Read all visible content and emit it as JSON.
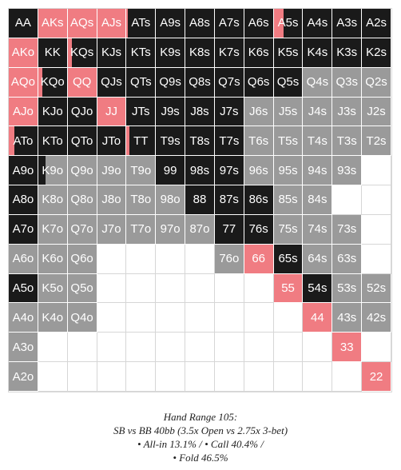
{
  "chart_data": {
    "type": "heatmap",
    "colors": {
      "allin": "#f07c82",
      "call": "#1a1a1a",
      "fold": "#9a9a9a",
      "empty": "#ffffff"
    },
    "rows": [
      [
        {
          "l": "AA",
          "a": 0,
          "c": 1,
          "f": 0
        },
        {
          "l": "AKs",
          "a": 1,
          "c": 0,
          "f": 0
        },
        {
          "l": "AQs",
          "a": 1,
          "c": 0,
          "f": 0
        },
        {
          "l": "AJs",
          "a": 1,
          "c": 0,
          "f": 0
        },
        {
          "l": "ATs",
          "a": 0.05,
          "c": 0.95,
          "f": 0
        },
        {
          "l": "A9s",
          "a": 0,
          "c": 1,
          "f": 0
        },
        {
          "l": "A8s",
          "a": 0,
          "c": 1,
          "f": 0
        },
        {
          "l": "A7s",
          "a": 0,
          "c": 1,
          "f": 0
        },
        {
          "l": "A6s",
          "a": 0,
          "c": 1,
          "f": 0
        },
        {
          "l": "A5s",
          "a": 0.35,
          "c": 0.65,
          "f": 0
        },
        {
          "l": "A4s",
          "a": 0,
          "c": 1,
          "f": 0
        },
        {
          "l": "A3s",
          "a": 0,
          "c": 1,
          "f": 0
        },
        {
          "l": "A2s",
          "a": 0,
          "c": 1,
          "f": 0
        }
      ],
      [
        {
          "l": "AKo",
          "a": 1,
          "c": 0,
          "f": 0
        },
        {
          "l": "KK",
          "a": 0,
          "c": 1,
          "f": 0
        },
        {
          "l": "KQs",
          "a": 0.15,
          "c": 0.85,
          "f": 0
        },
        {
          "l": "KJs",
          "a": 0,
          "c": 1,
          "f": 0
        },
        {
          "l": "KTs",
          "a": 0,
          "c": 1,
          "f": 0
        },
        {
          "l": "K9s",
          "a": 0,
          "c": 1,
          "f": 0
        },
        {
          "l": "K8s",
          "a": 0,
          "c": 1,
          "f": 0
        },
        {
          "l": "K7s",
          "a": 0,
          "c": 1,
          "f": 0
        },
        {
          "l": "K6s",
          "a": 0,
          "c": 1,
          "f": 0
        },
        {
          "l": "K5s",
          "a": 0,
          "c": 1,
          "f": 0
        },
        {
          "l": "K4s",
          "a": 0,
          "c": 1,
          "f": 0
        },
        {
          "l": "K3s",
          "a": 0,
          "c": 1,
          "f": 0
        },
        {
          "l": "K2s",
          "a": 0,
          "c": 1,
          "f": 0
        }
      ],
      [
        {
          "l": "AQo",
          "a": 1,
          "c": 0,
          "f": 0
        },
        {
          "l": "KQo",
          "a": 0.15,
          "c": 0.85,
          "f": 0
        },
        {
          "l": "QQ",
          "a": 1,
          "c": 0,
          "f": 0
        },
        {
          "l": "QJs",
          "a": 0,
          "c": 1,
          "f": 0
        },
        {
          "l": "QTs",
          "a": 0,
          "c": 1,
          "f": 0
        },
        {
          "l": "Q9s",
          "a": 0,
          "c": 1,
          "f": 0
        },
        {
          "l": "Q8s",
          "a": 0,
          "c": 1,
          "f": 0
        },
        {
          "l": "Q7s",
          "a": 0,
          "c": 1,
          "f": 0
        },
        {
          "l": "Q6s",
          "a": 0,
          "c": 1,
          "f": 0
        },
        {
          "l": "Q5s",
          "a": 0,
          "c": 1,
          "f": 0
        },
        {
          "l": "Q4s",
          "a": 0,
          "c": 0,
          "f": 1
        },
        {
          "l": "Q3s",
          "a": 0,
          "c": 0,
          "f": 1
        },
        {
          "l": "Q2s",
          "a": 0,
          "c": 0,
          "f": 1
        }
      ],
      [
        {
          "l": "AJo",
          "a": 1,
          "c": 0,
          "f": 0
        },
        {
          "l": "KJo",
          "a": 0,
          "c": 1,
          "f": 0
        },
        {
          "l": "QJo",
          "a": 0,
          "c": 1,
          "f": 0
        },
        {
          "l": "JJ",
          "a": 1,
          "c": 0,
          "f": 0
        },
        {
          "l": "JTs",
          "a": 0,
          "c": 1,
          "f": 0
        },
        {
          "l": "J9s",
          "a": 0,
          "c": 1,
          "f": 0
        },
        {
          "l": "J8s",
          "a": 0,
          "c": 1,
          "f": 0
        },
        {
          "l": "J7s",
          "a": 0,
          "c": 1,
          "f": 0
        },
        {
          "l": "J6s",
          "a": 0,
          "c": 0,
          "f": 1
        },
        {
          "l": "J5s",
          "a": 0,
          "c": 0,
          "f": 1
        },
        {
          "l": "J4s",
          "a": 0,
          "c": 0,
          "f": 1
        },
        {
          "l": "J3s",
          "a": 0,
          "c": 0,
          "f": 1
        },
        {
          "l": "J2s",
          "a": 0,
          "c": 0,
          "f": 1
        }
      ],
      [
        {
          "l": "ATo",
          "a": 0.2,
          "c": 0.8,
          "f": 0
        },
        {
          "l": "KTo",
          "a": 0,
          "c": 1,
          "f": 0
        },
        {
          "l": "QTo",
          "a": 0,
          "c": 1,
          "f": 0
        },
        {
          "l": "JTo",
          "a": 0,
          "c": 1,
          "f": 0
        },
        {
          "l": "TT",
          "a": 0.1,
          "c": 0.9,
          "f": 0
        },
        {
          "l": "T9s",
          "a": 0,
          "c": 1,
          "f": 0
        },
        {
          "l": "T8s",
          "a": 0,
          "c": 1,
          "f": 0
        },
        {
          "l": "T7s",
          "a": 0,
          "c": 1,
          "f": 0
        },
        {
          "l": "T6s",
          "a": 0,
          "c": 0,
          "f": 1
        },
        {
          "l": "T5s",
          "a": 0,
          "c": 0,
          "f": 1
        },
        {
          "l": "T4s",
          "a": 0,
          "c": 0,
          "f": 1
        },
        {
          "l": "T3s",
          "a": 0,
          "c": 0,
          "f": 1
        },
        {
          "l": "T2s",
          "a": 0,
          "c": 0,
          "f": 1
        }
      ],
      [
        {
          "l": "A9o",
          "a": 0,
          "c": 1,
          "f": 0
        },
        {
          "l": "K9o",
          "a": 0,
          "c": 0.25,
          "f": 0.75
        },
        {
          "l": "Q9o",
          "a": 0,
          "c": 0,
          "f": 1
        },
        {
          "l": "J9o",
          "a": 0,
          "c": 0,
          "f": 1
        },
        {
          "l": "T9o",
          "a": 0,
          "c": 0,
          "f": 1
        },
        {
          "l": "99",
          "a": 0,
          "c": 1,
          "f": 0
        },
        {
          "l": "98s",
          "a": 0,
          "c": 1,
          "f": 0
        },
        {
          "l": "97s",
          "a": 0,
          "c": 1,
          "f": 0
        },
        {
          "l": "96s",
          "a": 0,
          "c": 0,
          "f": 1
        },
        {
          "l": "95s",
          "a": 0,
          "c": 0,
          "f": 1
        },
        {
          "l": "94s",
          "a": 0,
          "c": 0,
          "f": 1
        },
        {
          "l": "93s",
          "a": 0,
          "c": 0,
          "f": 1
        },
        {
          "l": "",
          "a": 0,
          "c": 0,
          "f": 0
        }
      ],
      [
        {
          "l": "A8o",
          "a": 0,
          "c": 1,
          "f": 0
        },
        {
          "l": "K8o",
          "a": 0,
          "c": 0,
          "f": 1
        },
        {
          "l": "Q8o",
          "a": 0,
          "c": 0,
          "f": 1
        },
        {
          "l": "J8o",
          "a": 0,
          "c": 0,
          "f": 1
        },
        {
          "l": "T8o",
          "a": 0,
          "c": 0,
          "f": 1
        },
        {
          "l": "98o",
          "a": 0,
          "c": 0,
          "f": 1
        },
        {
          "l": "88",
          "a": 0,
          "c": 1,
          "f": 0
        },
        {
          "l": "87s",
          "a": 0,
          "c": 1,
          "f": 0
        },
        {
          "l": "86s",
          "a": 0,
          "c": 1,
          "f": 0
        },
        {
          "l": "85s",
          "a": 0,
          "c": 0,
          "f": 1
        },
        {
          "l": "84s",
          "a": 0,
          "c": 0,
          "f": 1
        },
        {
          "l": "",
          "a": 0,
          "c": 0,
          "f": 0
        },
        {
          "l": "",
          "a": 0,
          "c": 0,
          "f": 0
        }
      ],
      [
        {
          "l": "A7o",
          "a": 0,
          "c": 1,
          "f": 0
        },
        {
          "l": "K7o",
          "a": 0,
          "c": 0,
          "f": 1
        },
        {
          "l": "Q7o",
          "a": 0,
          "c": 0,
          "f": 1
        },
        {
          "l": "J7o",
          "a": 0,
          "c": 0,
          "f": 1
        },
        {
          "l": "T7o",
          "a": 0,
          "c": 0,
          "f": 1
        },
        {
          "l": "97o",
          "a": 0,
          "c": 0,
          "f": 1
        },
        {
          "l": "87o",
          "a": 0,
          "c": 0,
          "f": 1
        },
        {
          "l": "77",
          "a": 0,
          "c": 1,
          "f": 0
        },
        {
          "l": "76s",
          "a": 0,
          "c": 1,
          "f": 0
        },
        {
          "l": "75s",
          "a": 0,
          "c": 0,
          "f": 1
        },
        {
          "l": "74s",
          "a": 0,
          "c": 0,
          "f": 1
        },
        {
          "l": "73s",
          "a": 0,
          "c": 0,
          "f": 1
        },
        {
          "l": "",
          "a": 0,
          "c": 0,
          "f": 0
        }
      ],
      [
        {
          "l": "A6o",
          "a": 0,
          "c": 0,
          "f": 1
        },
        {
          "l": "K6o",
          "a": 0,
          "c": 0,
          "f": 1
        },
        {
          "l": "Q6o",
          "a": 0,
          "c": 0,
          "f": 1
        },
        {
          "l": "",
          "a": 0,
          "c": 0,
          "f": 0
        },
        {
          "l": "",
          "a": 0,
          "c": 0,
          "f": 0
        },
        {
          "l": "",
          "a": 0,
          "c": 0,
          "f": 0
        },
        {
          "l": "",
          "a": 0,
          "c": 0,
          "f": 0
        },
        {
          "l": "76o",
          "a": 0,
          "c": 0,
          "f": 1
        },
        {
          "l": "66",
          "a": 1,
          "c": 0,
          "f": 0
        },
        {
          "l": "65s",
          "a": 0,
          "c": 1,
          "f": 0
        },
        {
          "l": "64s",
          "a": 0,
          "c": 0,
          "f": 1
        },
        {
          "l": "63s",
          "a": 0,
          "c": 0,
          "f": 1
        },
        {
          "l": "",
          "a": 0,
          "c": 0,
          "f": 0
        }
      ],
      [
        {
          "l": "A5o",
          "a": 0,
          "c": 1,
          "f": 0
        },
        {
          "l": "K5o",
          "a": 0,
          "c": 0,
          "f": 1
        },
        {
          "l": "Q5o",
          "a": 0,
          "c": 0,
          "f": 1
        },
        {
          "l": "",
          "a": 0,
          "c": 0,
          "f": 0
        },
        {
          "l": "",
          "a": 0,
          "c": 0,
          "f": 0
        },
        {
          "l": "",
          "a": 0,
          "c": 0,
          "f": 0
        },
        {
          "l": "",
          "a": 0,
          "c": 0,
          "f": 0
        },
        {
          "l": "",
          "a": 0,
          "c": 0,
          "f": 0
        },
        {
          "l": "",
          "a": 0,
          "c": 0,
          "f": 0
        },
        {
          "l": "55",
          "a": 1,
          "c": 0,
          "f": 0
        },
        {
          "l": "54s",
          "a": 0,
          "c": 1,
          "f": 0
        },
        {
          "l": "53s",
          "a": 0,
          "c": 0,
          "f": 1
        },
        {
          "l": "52s",
          "a": 0,
          "c": 0,
          "f": 1
        }
      ],
      [
        {
          "l": "A4o",
          "a": 0,
          "c": 0,
          "f": 1
        },
        {
          "l": "K4o",
          "a": 0,
          "c": 0,
          "f": 1
        },
        {
          "l": "Q4o",
          "a": 0,
          "c": 0,
          "f": 1
        },
        {
          "l": "",
          "a": 0,
          "c": 0,
          "f": 0
        },
        {
          "l": "",
          "a": 0,
          "c": 0,
          "f": 0
        },
        {
          "l": "",
          "a": 0,
          "c": 0,
          "f": 0
        },
        {
          "l": "",
          "a": 0,
          "c": 0,
          "f": 0
        },
        {
          "l": "",
          "a": 0,
          "c": 0,
          "f": 0
        },
        {
          "l": "",
          "a": 0,
          "c": 0,
          "f": 0
        },
        {
          "l": "",
          "a": 0,
          "c": 0,
          "f": 0
        },
        {
          "l": "44",
          "a": 1,
          "c": 0,
          "f": 0
        },
        {
          "l": "43s",
          "a": 0,
          "c": 0,
          "f": 1
        },
        {
          "l": "42s",
          "a": 0,
          "c": 0,
          "f": 1
        }
      ],
      [
        {
          "l": "A3o",
          "a": 0,
          "c": 0,
          "f": 1
        },
        {
          "l": "",
          "a": 0,
          "c": 0,
          "f": 0
        },
        {
          "l": "",
          "a": 0,
          "c": 0,
          "f": 0
        },
        {
          "l": "",
          "a": 0,
          "c": 0,
          "f": 0
        },
        {
          "l": "",
          "a": 0,
          "c": 0,
          "f": 0
        },
        {
          "l": "",
          "a": 0,
          "c": 0,
          "f": 0
        },
        {
          "l": "",
          "a": 0,
          "c": 0,
          "f": 0
        },
        {
          "l": "",
          "a": 0,
          "c": 0,
          "f": 0
        },
        {
          "l": "",
          "a": 0,
          "c": 0,
          "f": 0
        },
        {
          "l": "",
          "a": 0,
          "c": 0,
          "f": 0
        },
        {
          "l": "",
          "a": 0,
          "c": 0,
          "f": 0
        },
        {
          "l": "33",
          "a": 1,
          "c": 0,
          "f": 0
        },
        {
          "l": "",
          "a": 0,
          "c": 0,
          "f": 0
        }
      ],
      [
        {
          "l": "A2o",
          "a": 0,
          "c": 0,
          "f": 1
        },
        {
          "l": "",
          "a": 0,
          "c": 0,
          "f": 0
        },
        {
          "l": "",
          "a": 0,
          "c": 0,
          "f": 0
        },
        {
          "l": "",
          "a": 0,
          "c": 0,
          "f": 0
        },
        {
          "l": "",
          "a": 0,
          "c": 0,
          "f": 0
        },
        {
          "l": "",
          "a": 0,
          "c": 0,
          "f": 0
        },
        {
          "l": "",
          "a": 0,
          "c": 0,
          "f": 0
        },
        {
          "l": "",
          "a": 0,
          "c": 0,
          "f": 0
        },
        {
          "l": "",
          "a": 0,
          "c": 0,
          "f": 0
        },
        {
          "l": "",
          "a": 0,
          "c": 0,
          "f": 0
        },
        {
          "l": "",
          "a": 0,
          "c": 0,
          "f": 0
        },
        {
          "l": "",
          "a": 0,
          "c": 0,
          "f": 0
        },
        {
          "l": "22",
          "a": 1,
          "c": 0,
          "f": 0
        }
      ]
    ]
  },
  "caption": {
    "line1": "Hand Range 105:",
    "line2": "SB vs BB 40bb (3.5x Open vs 2.75x 3-bet)",
    "line3": "• All-in 13.1% / • Call 40.4% /",
    "line4": "• Fold 46.5%"
  }
}
